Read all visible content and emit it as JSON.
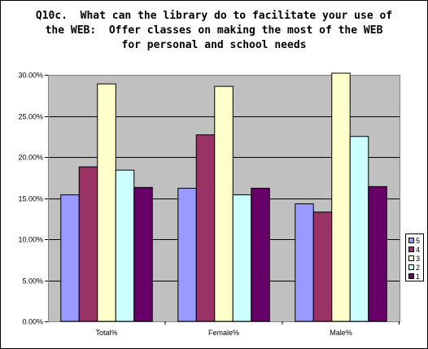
{
  "chart_data": {
    "type": "bar",
    "title_lines": [
      "Q10c.  What can the library do to facilitate your use of",
      "the WEB:  Offer classes on making the most of the WEB",
      "for personal and school needs"
    ],
    "categories": [
      "Total%",
      "Female%",
      "Male%"
    ],
    "series": [
      {
        "name": "5",
        "color": "#9999ff",
        "values": [
          0.154,
          0.162,
          0.143
        ]
      },
      {
        "name": "4",
        "color": "#993366",
        "values": [
          0.188,
          0.227,
          0.133
        ]
      },
      {
        "name": "3",
        "color": "#ffffcc",
        "values": [
          0.289,
          0.286,
          0.302
        ]
      },
      {
        "name": "2",
        "color": "#ccffff",
        "values": [
          0.184,
          0.154,
          0.225
        ]
      },
      {
        "name": "1",
        "color": "#660066",
        "values": [
          0.163,
          0.162,
          0.164
        ]
      }
    ],
    "ylim": [
      0,
      0.3
    ],
    "yticks": [
      {
        "value": 0.0,
        "label": "0.00%"
      },
      {
        "value": 0.05,
        "label": "5.00%"
      },
      {
        "value": 0.1,
        "label": "10.00%"
      },
      {
        "value": 0.15,
        "label": "15.00%"
      },
      {
        "value": 0.2,
        "label": "20.00%"
      },
      {
        "value": 0.25,
        "label": "25.00%"
      },
      {
        "value": 0.3,
        "label": "30.00%"
      }
    ],
    "grid": true,
    "plot_background": "#c0c0c0",
    "legend_position": "right",
    "legend_order": [
      "5",
      "4",
      "3",
      "2",
      "1"
    ]
  }
}
